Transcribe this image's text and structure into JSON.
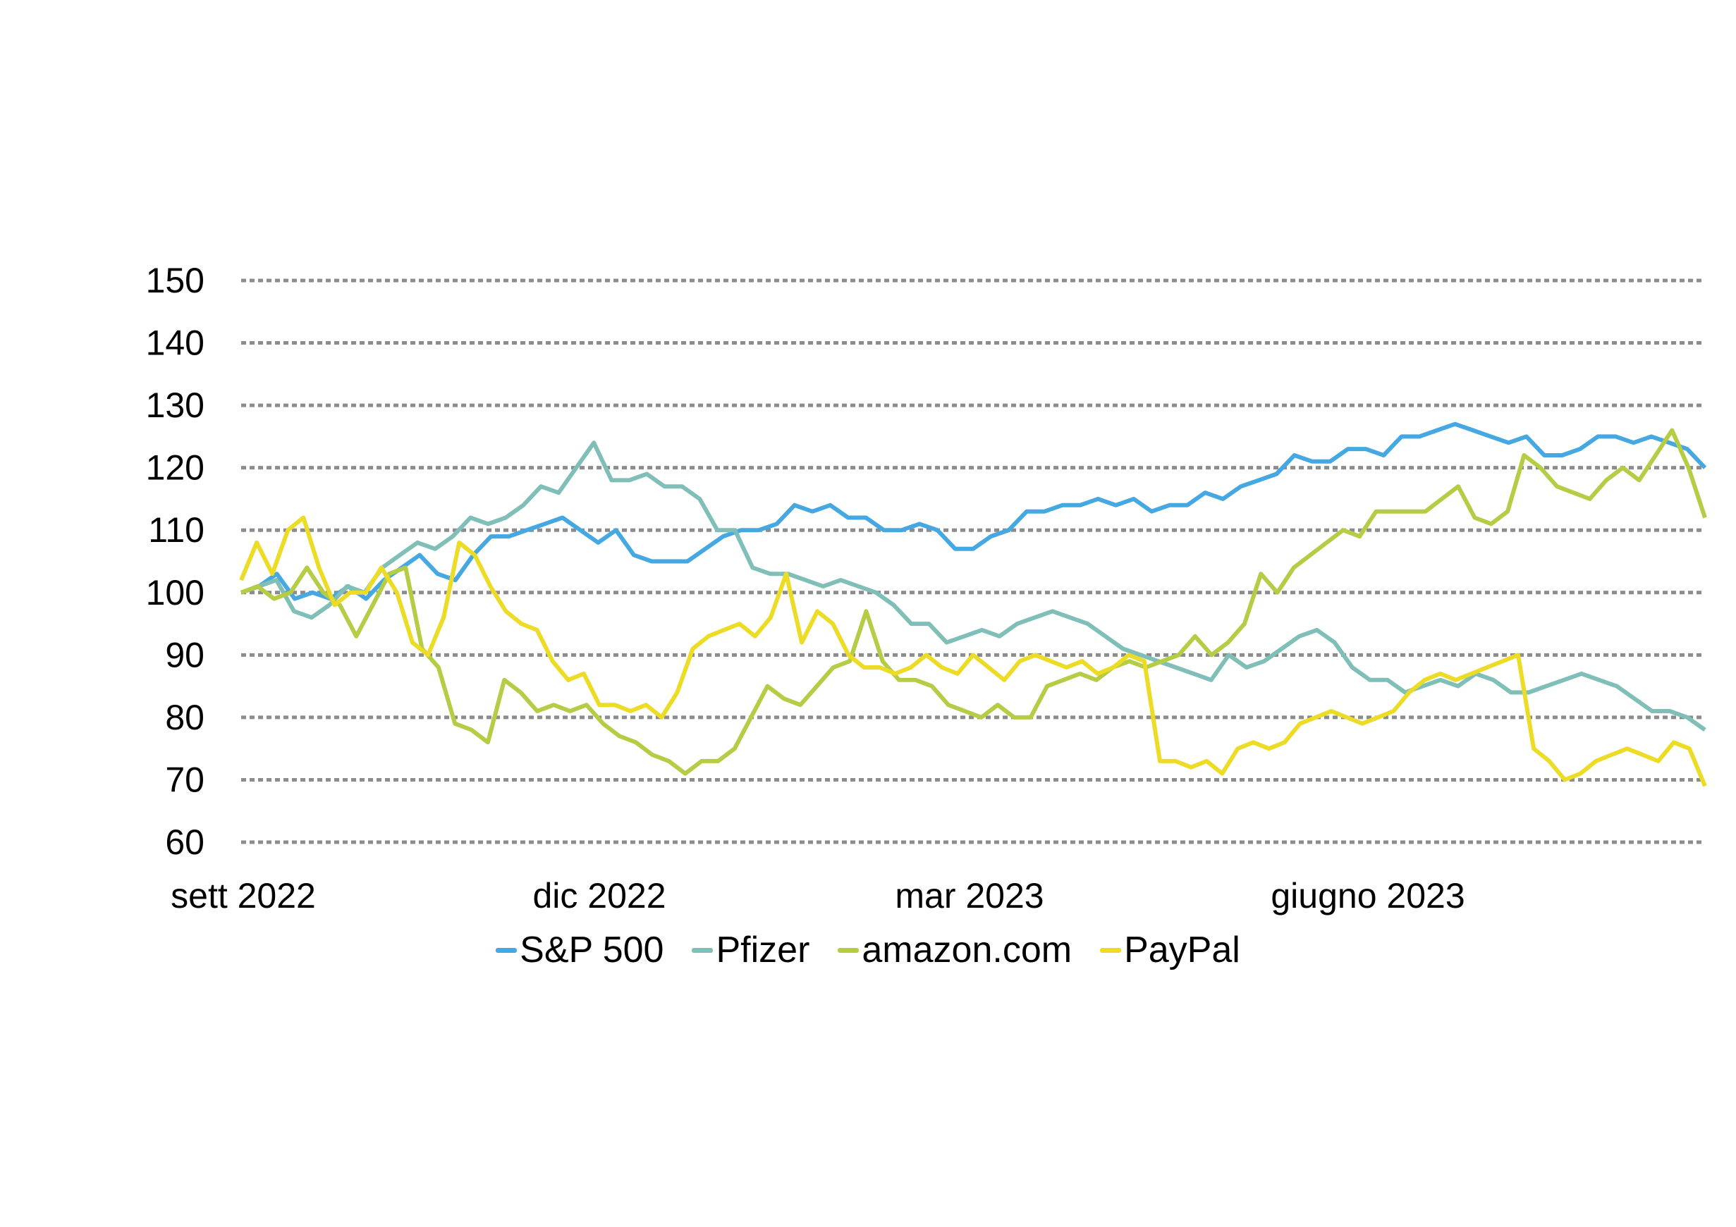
{
  "chart_data": {
    "type": "line",
    "title": "",
    "xlabel": "",
    "ylabel": "",
    "ylim": [
      60,
      150
    ],
    "yticks": [
      60,
      70,
      80,
      90,
      100,
      110,
      120,
      130,
      140,
      150
    ],
    "grid": true,
    "legend_position": "bottom",
    "xtick_labels": [
      "sett 2022",
      "dic 2022",
      "mar 2023",
      "giugno 2023"
    ],
    "x_range": [
      "2022-09",
      "2023-08"
    ],
    "series": [
      {
        "name": "S&P 500",
        "color": "#45A8E2",
        "values": [
          100,
          101,
          103,
          99,
          100,
          99,
          101,
          99,
          102,
          104,
          106,
          103,
          102,
          106,
          109,
          109,
          110,
          111,
          112,
          110,
          108,
          110,
          106,
          105,
          105,
          105,
          107,
          109,
          110,
          110,
          111,
          114,
          113,
          114,
          112,
          112,
          110,
          110,
          111,
          110,
          107,
          107,
          109,
          110,
          113,
          113,
          114,
          114,
          115,
          114,
          115,
          113,
          114,
          114,
          116,
          115,
          117,
          118,
          119,
          122,
          121,
          121,
          123,
          123,
          122,
          125,
          125,
          126,
          127,
          126,
          125,
          124,
          125,
          122,
          122,
          123,
          125,
          125,
          124,
          125,
          124,
          123,
          120
        ]
      },
      {
        "name": "Pfizer",
        "color": "#7FBFB8",
        "values": [
          100,
          101,
          102,
          97,
          96,
          98,
          101,
          100,
          104,
          106,
          108,
          107,
          109,
          112,
          111,
          112,
          114,
          117,
          116,
          120,
          124,
          118,
          118,
          119,
          117,
          117,
          115,
          110,
          110,
          104,
          103,
          103,
          102,
          101,
          102,
          101,
          100,
          98,
          95,
          95,
          92,
          93,
          94,
          93,
          95,
          96,
          97,
          96,
          95,
          93,
          91,
          90,
          89,
          88,
          87,
          86,
          90,
          88,
          89,
          91,
          93,
          94,
          92,
          88,
          86,
          86,
          84,
          85,
          86,
          85,
          87,
          86,
          84,
          84,
          85,
          86,
          87,
          86,
          85,
          83,
          81,
          81,
          80,
          78
        ]
      },
      {
        "name": "amazon.com",
        "color": "#B5CC45",
        "values": [
          100,
          101,
          99,
          100,
          104,
          100,
          98,
          93,
          98,
          103,
          104,
          91,
          88,
          79,
          78,
          76,
          86,
          84,
          81,
          82,
          81,
          82,
          79,
          77,
          76,
          74,
          73,
          71,
          73,
          73,
          75,
          80,
          85,
          83,
          82,
          85,
          88,
          89,
          97,
          89,
          86,
          86,
          85,
          82,
          81,
          80,
          82,
          80,
          80,
          85,
          86,
          87,
          86,
          88,
          89,
          88,
          89,
          90,
          93,
          90,
          92,
          95,
          103,
          100,
          104,
          106,
          108,
          110,
          109,
          113,
          113,
          113,
          113,
          115,
          117,
          112,
          111,
          113,
          122,
          120,
          117,
          116,
          115,
          118,
          120,
          118,
          122,
          126,
          120,
          112
        ]
      },
      {
        "name": "PayPal",
        "color": "#ECDC25",
        "values": [
          102,
          108,
          103,
          110,
          112,
          104,
          98,
          100,
          100,
          104,
          100,
          92,
          90,
          96,
          108,
          106,
          101,
          97,
          95,
          94,
          89,
          86,
          87,
          82,
          82,
          81,
          82,
          80,
          84,
          91,
          93,
          94,
          95,
          93,
          96,
          103,
          92,
          97,
          95,
          90,
          88,
          88,
          87,
          88,
          90,
          88,
          87,
          90,
          88,
          86,
          89,
          90,
          89,
          88,
          89,
          87,
          88,
          90,
          89,
          73,
          73,
          72,
          73,
          71,
          75,
          76,
          75,
          76,
          79,
          80,
          81,
          80,
          79,
          80,
          81,
          84,
          86,
          87,
          86,
          87,
          88,
          89,
          90,
          75,
          73,
          70,
          71,
          73,
          74,
          75,
          74,
          73,
          76,
          75,
          69
        ]
      }
    ]
  }
}
